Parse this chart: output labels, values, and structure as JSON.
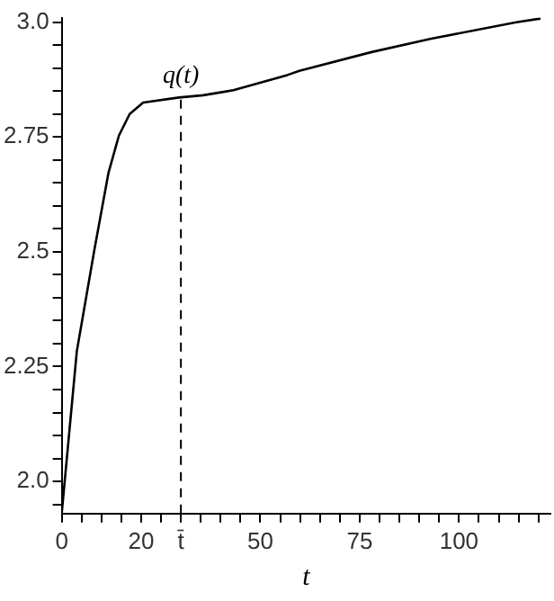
{
  "chart_data": {
    "type": "line",
    "xlabel": "t",
    "x": [
      0,
      3.8,
      8.3,
      11.8,
      14.4,
      17.1,
      20.5,
      29.5,
      35.6,
      43.2,
      56.8,
      59.8,
      78,
      93,
      114.4,
      120.5
    ],
    "series": [
      {
        "color": "#000000",
        "values": [
          1.93,
          2.283,
          2.508,
          2.673,
          2.753,
          2.8,
          2.825,
          2.836,
          2.841,
          2.852,
          2.885,
          2.894,
          2.935,
          2.964,
          3.0,
          3.008
        ]
      }
    ],
    "xlim": [
      0,
      123
    ],
    "ylim": [
      1.93,
      3.01
    ],
    "xticks": [
      0,
      {
        "value": 5,
        "label": null
      },
      {
        "value": 10,
        "label": null
      },
      {
        "value": 15,
        "label": null
      },
      20,
      {
        "value": 25,
        "label": null
      },
      {
        "value": 30,
        "label": "t̄"
      },
      {
        "value": 35,
        "label": null
      },
      {
        "value": 40,
        "label": null
      },
      {
        "value": 45,
        "label": null
      },
      50,
      {
        "value": 55,
        "label": null
      },
      {
        "value": 60,
        "label": null
      },
      {
        "value": 65,
        "label": null
      },
      {
        "value": 70,
        "label": null
      },
      75,
      {
        "value": 80,
        "label": null
      },
      {
        "value": 85,
        "label": null
      },
      {
        "value": 90,
        "label": null
      },
      {
        "value": 95,
        "label": null
      },
      100,
      {
        "value": 105,
        "label": null
      },
      {
        "value": 110,
        "label": null
      },
      {
        "value": 115,
        "label": null
      },
      {
        "value": 120,
        "label": null
      }
    ],
    "yticks": [
      {
        "value": 1.95,
        "label": null
      },
      {
        "value": 2.0,
        "label": "2.0"
      },
      {
        "value": 2.05,
        "label": null
      },
      {
        "value": 2.1,
        "label": null
      },
      {
        "value": 2.15,
        "label": null
      },
      {
        "value": 2.2,
        "label": null
      },
      2.25,
      {
        "value": 2.3,
        "label": null
      },
      {
        "value": 2.35,
        "label": null
      },
      {
        "value": 2.4,
        "label": null
      },
      {
        "value": 2.45,
        "label": null
      },
      2.5,
      {
        "value": 2.55,
        "label": null
      },
      {
        "value": 2.6,
        "label": null
      },
      {
        "value": 2.65,
        "label": null
      },
      {
        "value": 2.7,
        "label": null
      },
      2.75,
      {
        "value": 2.8,
        "label": null
      },
      {
        "value": 2.85,
        "label": null
      },
      {
        "value": 2.9,
        "label": null
      },
      {
        "value": 2.95,
        "label": null
      },
      {
        "value": 3.0,
        "label": "3.0"
      }
    ],
    "ref_lines": [
      {
        "axis": "x",
        "value": 30,
        "line_style": "dashed",
        "color": "#000000"
      }
    ],
    "annotations": [
      {
        "text": "q(t)",
        "x": 30,
        "y": 2.836
      }
    ],
    "grid": false,
    "legend": false,
    "marker": "none",
    "line_style": "solid"
  }
}
